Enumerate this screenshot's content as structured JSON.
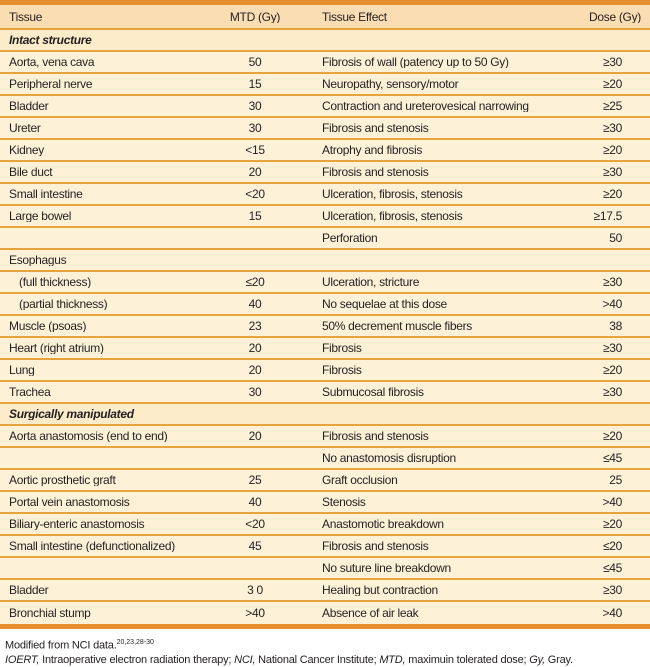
{
  "colors": {
    "bar": "#e78f2f",
    "header-bg": "#fbddb3",
    "section-bg": "#fcecc9",
    "row-bg": "#fdf1d7",
    "separator": "#e7a33c",
    "text": "#231f20",
    "page-bg": "#ffffff"
  },
  "table": {
    "columns": [
      "Tissue",
      "MTD (Gy)",
      "Tissue Effect",
      "Dose (Gy)"
    ],
    "rows": [
      {
        "type": "section",
        "tissue": "Intact structure"
      },
      {
        "type": "data",
        "tissue": "Aorta, vena cava",
        "mtd": "50",
        "effect": "Fibrosis of wall (patency up to 50 Gy)",
        "dose": "≥30"
      },
      {
        "type": "data",
        "tissue": "Peripheral nerve",
        "mtd": "15",
        "effect": "Neuropathy, sensory/motor",
        "dose": "≥20"
      },
      {
        "type": "data",
        "tissue": "Bladder",
        "mtd": "30",
        "effect": "Contraction and ureterovesical narrowing",
        "dose": "≥25"
      },
      {
        "type": "data",
        "tissue": "Ureter",
        "mtd": "30",
        "effect": "Fibrosis and stenosis",
        "dose": "≥30"
      },
      {
        "type": "data",
        "tissue": "Kidney",
        "mtd": "<15",
        "effect": "Atrophy and fibrosis",
        "dose": "≥20"
      },
      {
        "type": "data",
        "tissue": "Bile duct",
        "mtd": "20",
        "effect": "Fibrosis and stenosis",
        "dose": "≥30"
      },
      {
        "type": "data",
        "tissue": "Small intestine",
        "mtd": "<20",
        "effect": "Ulceration, fibrosis, stenosis",
        "dose": "≥20"
      },
      {
        "type": "data",
        "tissue": "Large bowel",
        "mtd": "15",
        "effect": "Ulceration, fibrosis, stenosis",
        "dose": "≥17.5"
      },
      {
        "type": "data",
        "tissue": "",
        "mtd": "",
        "effect": "Perforation",
        "dose": "50"
      },
      {
        "type": "data",
        "tissue": "Esophagus",
        "mtd": "",
        "effect": "",
        "dose": ""
      },
      {
        "type": "data",
        "indent": true,
        "tissue": "(full thickness)",
        "mtd": "≤20",
        "effect": "Ulceration, stricture",
        "dose": "≥30"
      },
      {
        "type": "data",
        "indent": true,
        "tissue": "(partial thickness)",
        "mtd": "40",
        "effect": "No sequelae at this dose",
        "dose": ">40"
      },
      {
        "type": "data",
        "tissue": "Muscle (psoas)",
        "mtd": "23",
        "effect": "50% decrement muscle fibers",
        "dose": "38"
      },
      {
        "type": "data",
        "tissue": "Heart (right atrium)",
        "mtd": "20",
        "effect": "Fibrosis",
        "dose": "≥30"
      },
      {
        "type": "data",
        "tissue": "Lung",
        "mtd": "20",
        "effect": "Fibrosis",
        "dose": "≥20"
      },
      {
        "type": "data",
        "tissue": "Trachea",
        "mtd": "30",
        "effect": "Submucosal fibrosis",
        "dose": "≥30"
      },
      {
        "type": "section",
        "tissue": "Surgically manipulated"
      },
      {
        "type": "data",
        "tissue": "Aorta anastomosis (end to end)",
        "mtd": "20",
        "effect": "Fibrosis and stenosis",
        "dose": "≥20"
      },
      {
        "type": "data",
        "tissue": "",
        "mtd": "",
        "effect": "No anastomosis disruption",
        "dose": "≤45"
      },
      {
        "type": "data",
        "tissue": "Aortic prosthetic graft",
        "mtd": "25",
        "effect": "Graft occlusion",
        "dose": "25"
      },
      {
        "type": "data",
        "tissue": "Portal vein anastomosis",
        "mtd": "40",
        "effect": "Stenosis",
        "dose": ">40"
      },
      {
        "type": "data",
        "tissue": "Biliary-enteric anastomosis",
        "mtd": "<20",
        "effect": "Anastomotic breakdown",
        "dose": "≥20"
      },
      {
        "type": "data",
        "tissue": "Small intestine (defunctionalized)",
        "mtd": "45",
        "effect": "Fibrosis and stenosis",
        "dose": "≤20"
      },
      {
        "type": "data",
        "tissue": "",
        "mtd": "",
        "effect": "No suture line breakdown",
        "dose": "≤45"
      },
      {
        "type": "data",
        "tissue": "Bladder",
        "mtd": "3 0",
        "effect": "Healing but contraction",
        "dose": "≥30"
      },
      {
        "type": "data",
        "tissue": "Bronchial stump",
        "mtd": ">40",
        "effect": "Absence of air leak",
        "dose": ">40"
      }
    ]
  },
  "footnotes": {
    "source": "Modified from NCI data.",
    "source_refs": "20,23,28-30",
    "abbreviations": [
      {
        "text": "IOERT,",
        "italic": true
      },
      {
        "text": " Intraoperative electron radiation therapy; ",
        "italic": false
      },
      {
        "text": "NCI,",
        "italic": true
      },
      {
        "text": " National Cancer Institute; ",
        "italic": false
      },
      {
        "text": "MTD,",
        "italic": true
      },
      {
        "text": " maximuin tolerated dose; ",
        "italic": false
      },
      {
        "text": "Gy,",
        "italic": true
      },
      {
        "text": " Gray.",
        "italic": false
      }
    ]
  }
}
